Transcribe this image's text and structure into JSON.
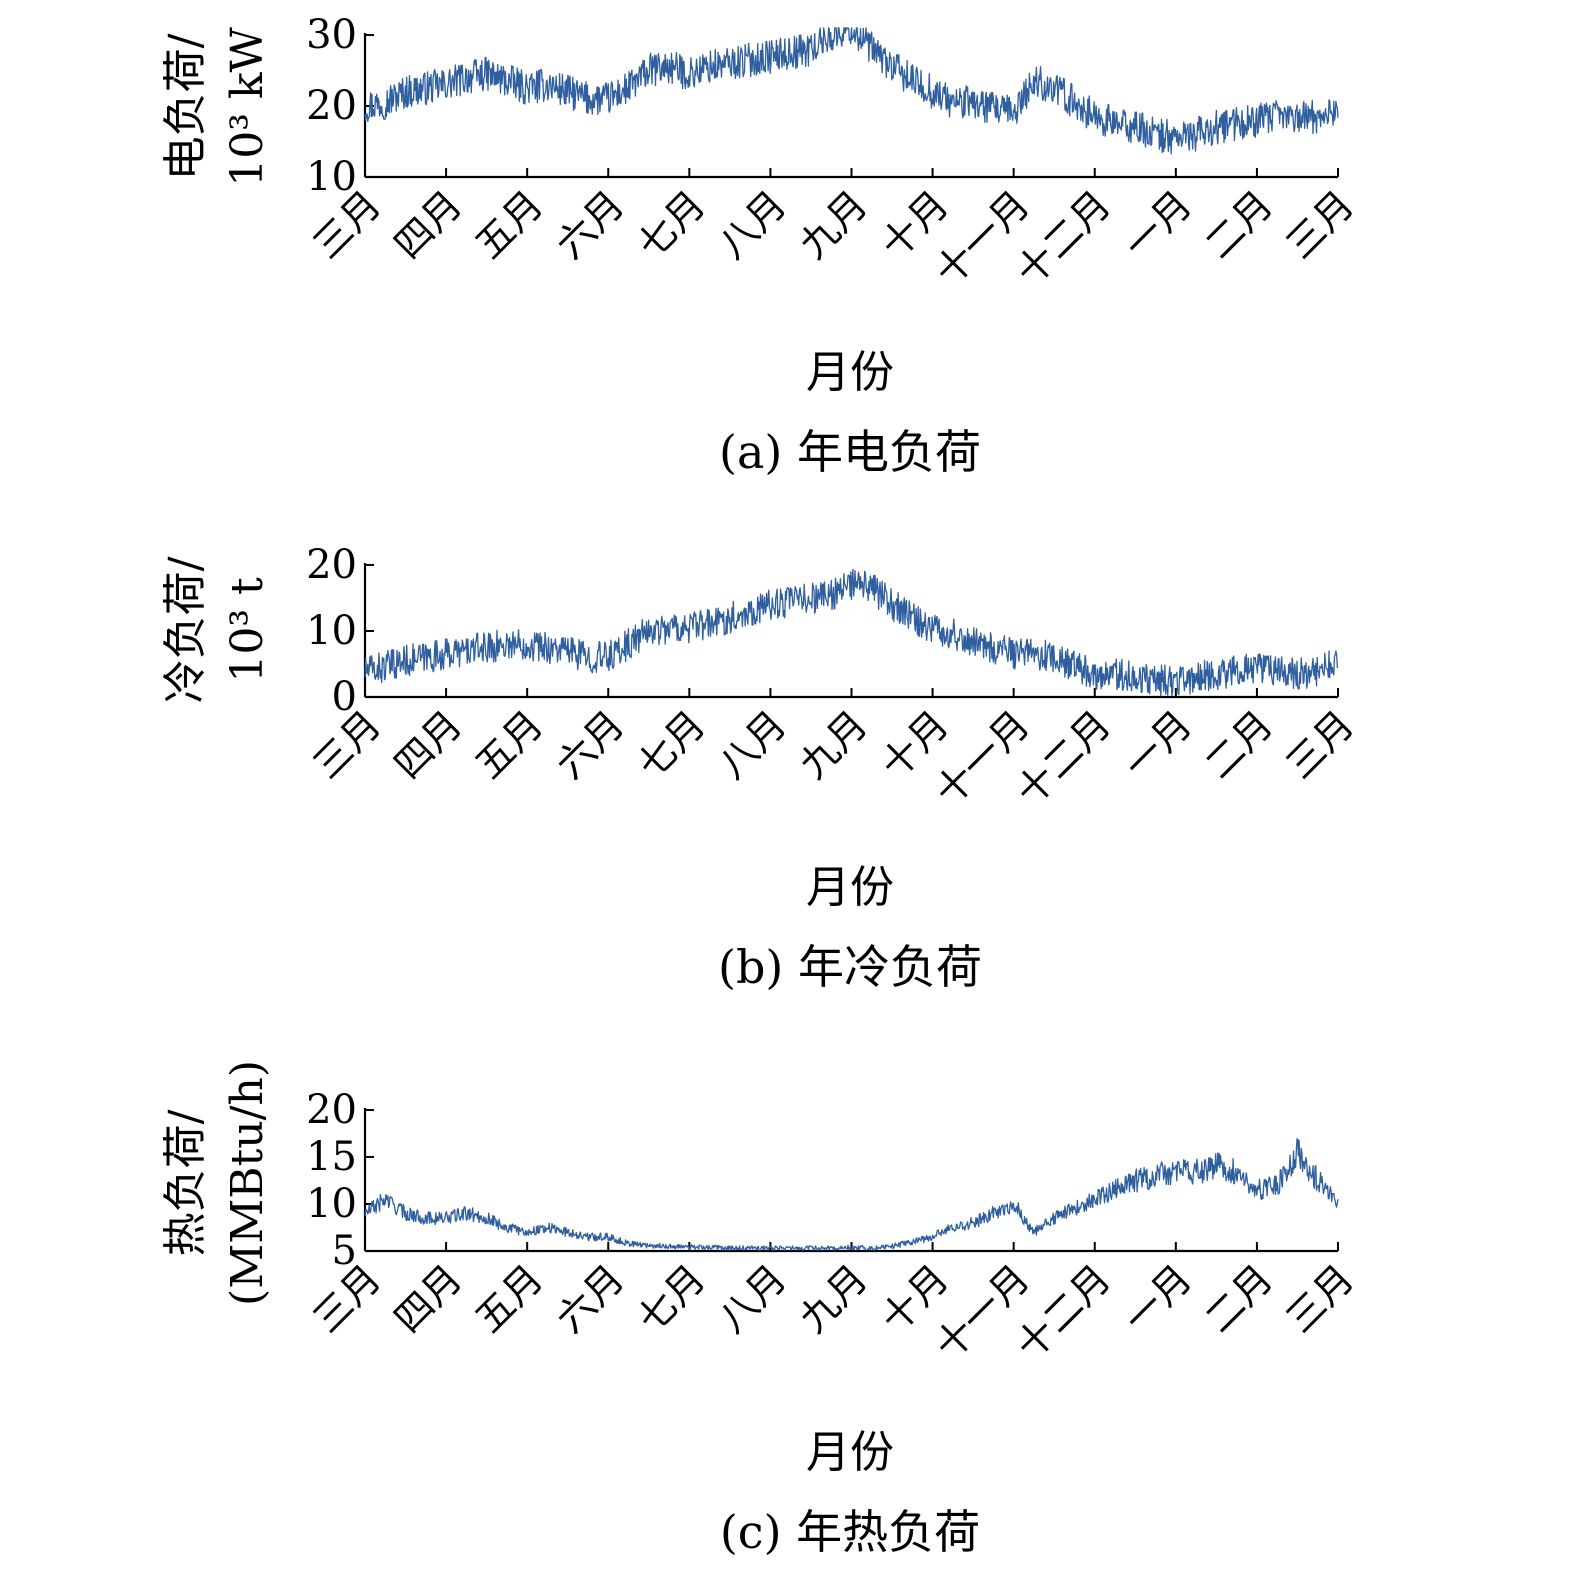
{
  "figure": {
    "months": [
      "三月",
      "四月",
      "五月",
      "六月",
      "七月",
      "八月",
      "九月",
      "十月",
      "十一月",
      "十二月",
      "一月",
      "二月",
      "三月"
    ]
  },
  "chart_data": [
    {
      "type": "line",
      "caption": "(a) 年电负荷",
      "xlabel": "月份",
      "ylabel_line1": "电负荷/",
      "ylabel_line2": "10³ kW",
      "ylim": [
        10,
        30
      ],
      "yticks": [
        10,
        20,
        30
      ],
      "series": [
        {
          "color": "#2f5f9f",
          "x_months": [
            0,
            0.25,
            0.5,
            0.75,
            1,
            1.25,
            1.5,
            1.75,
            2,
            2.25,
            2.5,
            2.75,
            3,
            3.25,
            3.5,
            3.75,
            4,
            4.25,
            4.5,
            4.75,
            5,
            5.25,
            5.5,
            5.75,
            6,
            6.25,
            6.5,
            6.75,
            7,
            7.25,
            7.5,
            7.75,
            8,
            8.25,
            8.5,
            8.75,
            9,
            9.25,
            9.5,
            9.75,
            10,
            10.25,
            10.5,
            10.75,
            11,
            11.25,
            11.5,
            11.75,
            12
          ],
          "values": [
            20,
            20.5,
            22,
            22.5,
            23,
            24,
            24.5,
            23.5,
            22.5,
            23,
            22,
            21,
            21,
            22.5,
            25,
            25.5,
            24.5,
            25.5,
            26,
            26.5,
            27,
            27.5,
            28,
            30,
            31,
            28,
            25.5,
            23.5,
            22,
            20.5,
            20.5,
            19.5,
            19,
            23.5,
            22.5,
            20.5,
            18.5,
            17.5,
            17,
            16,
            15.5,
            16,
            17,
            17.5,
            18,
            18.5,
            18.5,
            18.5,
            19.5
          ]
        }
      ]
    },
    {
      "type": "line",
      "caption": "(b) 年冷负荷",
      "xlabel": "月份",
      "ylabel_line1": "冷负荷/",
      "ylabel_line2": "10³ t",
      "ylim": [
        0,
        20
      ],
      "yticks": [
        0,
        10,
        20
      ],
      "series": [
        {
          "color": "#2f5f9f",
          "x_months": [
            0,
            0.25,
            0.5,
            0.75,
            1,
            1.25,
            1.5,
            1.75,
            2,
            2.25,
            2.5,
            2.75,
            3,
            3.25,
            3.5,
            3.75,
            4,
            4.25,
            4.5,
            4.75,
            5,
            5.25,
            5.5,
            5.75,
            6,
            6.25,
            6.5,
            6.75,
            7,
            7.25,
            7.5,
            7.75,
            8,
            8.25,
            8.5,
            8.75,
            9,
            9.25,
            9.5,
            9.75,
            10,
            10.25,
            10.5,
            10.75,
            11,
            11.25,
            11.5,
            11.75,
            12
          ],
          "values": [
            4,
            4.5,
            5.5,
            6,
            6.5,
            7,
            7.5,
            8,
            8,
            7.5,
            7,
            6,
            6,
            8,
            10,
            10.5,
            10.5,
            11,
            12,
            13,
            14,
            14.5,
            15,
            15.5,
            17,
            16.5,
            14,
            12,
            10.5,
            9.5,
            8.5,
            7.5,
            6.5,
            6.5,
            6,
            4.5,
            3.5,
            3.5,
            3,
            2.5,
            2.5,
            3,
            3.5,
            4,
            4.5,
            4,
            3.5,
            4,
            5
          ]
        }
      ]
    },
    {
      "type": "line",
      "caption": "(c) 年热负荷",
      "xlabel": "月份",
      "ylabel_line1": "热负荷/",
      "ylabel_line2": "(MMBtu/h)",
      "ylim": [
        5,
        20
      ],
      "yticks": [
        5,
        10,
        15,
        20
      ],
      "series": [
        {
          "color": "#2f5f9f",
          "x_months": [
            0,
            0.25,
            0.5,
            0.75,
            1,
            1.25,
            1.5,
            1.75,
            2,
            2.25,
            2.5,
            2.75,
            3,
            3.25,
            3.5,
            3.75,
            4,
            4.25,
            4.5,
            4.75,
            5,
            5.25,
            5.5,
            5.75,
            6,
            6.25,
            6.5,
            6.75,
            7,
            7.25,
            7.5,
            7.75,
            8,
            8.25,
            8.5,
            8.75,
            9,
            9.25,
            9.5,
            9.75,
            10,
            10.25,
            10.5,
            10.75,
            11,
            11.25,
            11.5,
            11.75,
            12
          ],
          "values": [
            9,
            10.5,
            9,
            8.5,
            8.5,
            9,
            8.5,
            7.5,
            7,
            7.5,
            7,
            6.5,
            6.5,
            5.8,
            5.6,
            5.5,
            5.4,
            5.4,
            5.3,
            5.3,
            5.3,
            5.3,
            5.3,
            5.3,
            5.4,
            5.3,
            5.5,
            6,
            6.5,
            7.5,
            8,
            9,
            10,
            7,
            8.5,
            9.5,
            10.5,
            11.5,
            12.5,
            13,
            13.5,
            13.5,
            14,
            13.5,
            11.5,
            12,
            15.5,
            12.5,
            10.5
          ]
        }
      ]
    }
  ]
}
